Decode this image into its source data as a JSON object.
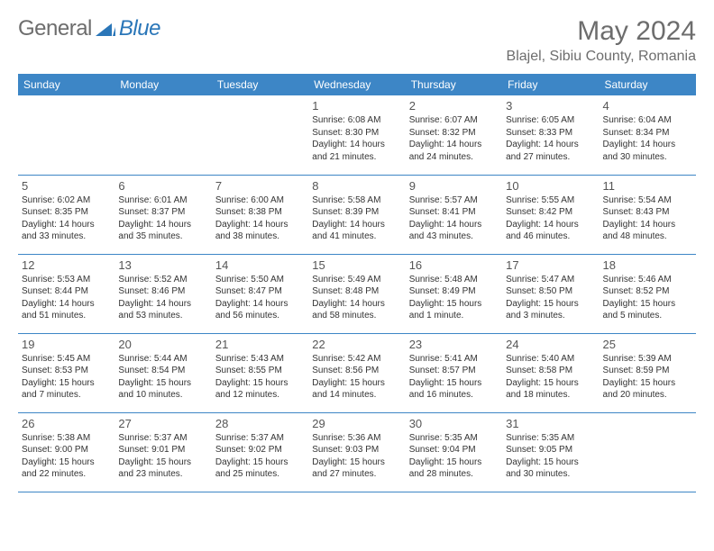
{
  "logo": {
    "text1": "General",
    "text2": "Blue"
  },
  "title": "May 2024",
  "location": "Blajel, Sibiu County, Romania",
  "colors": {
    "header_bg": "#3d86c6",
    "header_fg": "#ffffff",
    "text": "#333333",
    "muted": "#6d6d6d",
    "border": "#3d86c6"
  },
  "weekdays": [
    "Sunday",
    "Monday",
    "Tuesday",
    "Wednesday",
    "Thursday",
    "Friday",
    "Saturday"
  ],
  "weeks": [
    [
      null,
      null,
      null,
      {
        "d": "1",
        "sr": "Sunrise: 6:08 AM",
        "ss": "Sunset: 8:30 PM",
        "dl1": "Daylight: 14 hours",
        "dl2": "and 21 minutes."
      },
      {
        "d": "2",
        "sr": "Sunrise: 6:07 AM",
        "ss": "Sunset: 8:32 PM",
        "dl1": "Daylight: 14 hours",
        "dl2": "and 24 minutes."
      },
      {
        "d": "3",
        "sr": "Sunrise: 6:05 AM",
        "ss": "Sunset: 8:33 PM",
        "dl1": "Daylight: 14 hours",
        "dl2": "and 27 minutes."
      },
      {
        "d": "4",
        "sr": "Sunrise: 6:04 AM",
        "ss": "Sunset: 8:34 PM",
        "dl1": "Daylight: 14 hours",
        "dl2": "and 30 minutes."
      }
    ],
    [
      {
        "d": "5",
        "sr": "Sunrise: 6:02 AM",
        "ss": "Sunset: 8:35 PM",
        "dl1": "Daylight: 14 hours",
        "dl2": "and 33 minutes."
      },
      {
        "d": "6",
        "sr": "Sunrise: 6:01 AM",
        "ss": "Sunset: 8:37 PM",
        "dl1": "Daylight: 14 hours",
        "dl2": "and 35 minutes."
      },
      {
        "d": "7",
        "sr": "Sunrise: 6:00 AM",
        "ss": "Sunset: 8:38 PM",
        "dl1": "Daylight: 14 hours",
        "dl2": "and 38 minutes."
      },
      {
        "d": "8",
        "sr": "Sunrise: 5:58 AM",
        "ss": "Sunset: 8:39 PM",
        "dl1": "Daylight: 14 hours",
        "dl2": "and 41 minutes."
      },
      {
        "d": "9",
        "sr": "Sunrise: 5:57 AM",
        "ss": "Sunset: 8:41 PM",
        "dl1": "Daylight: 14 hours",
        "dl2": "and 43 minutes."
      },
      {
        "d": "10",
        "sr": "Sunrise: 5:55 AM",
        "ss": "Sunset: 8:42 PM",
        "dl1": "Daylight: 14 hours",
        "dl2": "and 46 minutes."
      },
      {
        "d": "11",
        "sr": "Sunrise: 5:54 AM",
        "ss": "Sunset: 8:43 PM",
        "dl1": "Daylight: 14 hours",
        "dl2": "and 48 minutes."
      }
    ],
    [
      {
        "d": "12",
        "sr": "Sunrise: 5:53 AM",
        "ss": "Sunset: 8:44 PM",
        "dl1": "Daylight: 14 hours",
        "dl2": "and 51 minutes."
      },
      {
        "d": "13",
        "sr": "Sunrise: 5:52 AM",
        "ss": "Sunset: 8:46 PM",
        "dl1": "Daylight: 14 hours",
        "dl2": "and 53 minutes."
      },
      {
        "d": "14",
        "sr": "Sunrise: 5:50 AM",
        "ss": "Sunset: 8:47 PM",
        "dl1": "Daylight: 14 hours",
        "dl2": "and 56 minutes."
      },
      {
        "d": "15",
        "sr": "Sunrise: 5:49 AM",
        "ss": "Sunset: 8:48 PM",
        "dl1": "Daylight: 14 hours",
        "dl2": "and 58 minutes."
      },
      {
        "d": "16",
        "sr": "Sunrise: 5:48 AM",
        "ss": "Sunset: 8:49 PM",
        "dl1": "Daylight: 15 hours",
        "dl2": "and 1 minute."
      },
      {
        "d": "17",
        "sr": "Sunrise: 5:47 AM",
        "ss": "Sunset: 8:50 PM",
        "dl1": "Daylight: 15 hours",
        "dl2": "and 3 minutes."
      },
      {
        "d": "18",
        "sr": "Sunrise: 5:46 AM",
        "ss": "Sunset: 8:52 PM",
        "dl1": "Daylight: 15 hours",
        "dl2": "and 5 minutes."
      }
    ],
    [
      {
        "d": "19",
        "sr": "Sunrise: 5:45 AM",
        "ss": "Sunset: 8:53 PM",
        "dl1": "Daylight: 15 hours",
        "dl2": "and 7 minutes."
      },
      {
        "d": "20",
        "sr": "Sunrise: 5:44 AM",
        "ss": "Sunset: 8:54 PM",
        "dl1": "Daylight: 15 hours",
        "dl2": "and 10 minutes."
      },
      {
        "d": "21",
        "sr": "Sunrise: 5:43 AM",
        "ss": "Sunset: 8:55 PM",
        "dl1": "Daylight: 15 hours",
        "dl2": "and 12 minutes."
      },
      {
        "d": "22",
        "sr": "Sunrise: 5:42 AM",
        "ss": "Sunset: 8:56 PM",
        "dl1": "Daylight: 15 hours",
        "dl2": "and 14 minutes."
      },
      {
        "d": "23",
        "sr": "Sunrise: 5:41 AM",
        "ss": "Sunset: 8:57 PM",
        "dl1": "Daylight: 15 hours",
        "dl2": "and 16 minutes."
      },
      {
        "d": "24",
        "sr": "Sunrise: 5:40 AM",
        "ss": "Sunset: 8:58 PM",
        "dl1": "Daylight: 15 hours",
        "dl2": "and 18 minutes."
      },
      {
        "d": "25",
        "sr": "Sunrise: 5:39 AM",
        "ss": "Sunset: 8:59 PM",
        "dl1": "Daylight: 15 hours",
        "dl2": "and 20 minutes."
      }
    ],
    [
      {
        "d": "26",
        "sr": "Sunrise: 5:38 AM",
        "ss": "Sunset: 9:00 PM",
        "dl1": "Daylight: 15 hours",
        "dl2": "and 22 minutes."
      },
      {
        "d": "27",
        "sr": "Sunrise: 5:37 AM",
        "ss": "Sunset: 9:01 PM",
        "dl1": "Daylight: 15 hours",
        "dl2": "and 23 minutes."
      },
      {
        "d": "28",
        "sr": "Sunrise: 5:37 AM",
        "ss": "Sunset: 9:02 PM",
        "dl1": "Daylight: 15 hours",
        "dl2": "and 25 minutes."
      },
      {
        "d": "29",
        "sr": "Sunrise: 5:36 AM",
        "ss": "Sunset: 9:03 PM",
        "dl1": "Daylight: 15 hours",
        "dl2": "and 27 minutes."
      },
      {
        "d": "30",
        "sr": "Sunrise: 5:35 AM",
        "ss": "Sunset: 9:04 PM",
        "dl1": "Daylight: 15 hours",
        "dl2": "and 28 minutes."
      },
      {
        "d": "31",
        "sr": "Sunrise: 5:35 AM",
        "ss": "Sunset: 9:05 PM",
        "dl1": "Daylight: 15 hours",
        "dl2": "and 30 minutes."
      },
      null
    ]
  ]
}
